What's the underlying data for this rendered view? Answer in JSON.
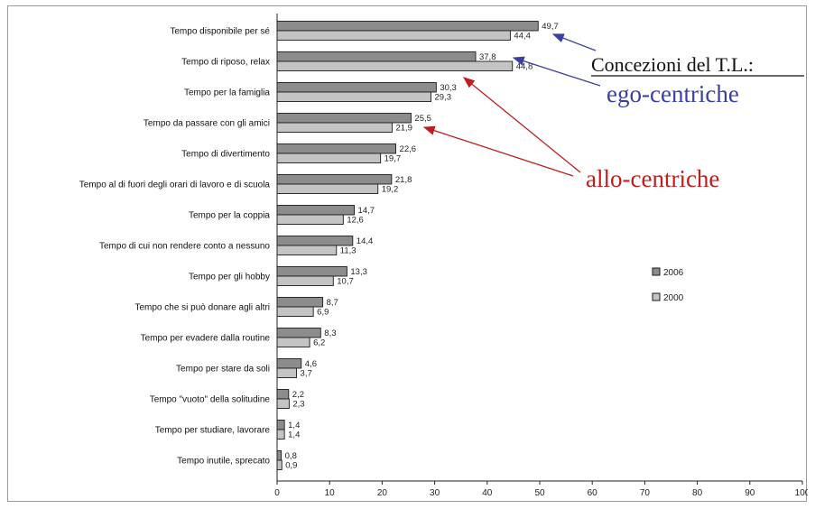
{
  "colors": {
    "series_2006": "#8c8c8c",
    "series_2000": "#c4c4c4",
    "bar_stroke": "#1a1a1a",
    "ego_color": "#3b3fa0",
    "allo_color": "#bf1e1e",
    "axis_color": "#222222"
  },
  "chart_data": {
    "type": "bar",
    "orientation": "horizontal",
    "categories": [
      "Tempo disponibile per sé",
      "Tempo di riposo, relax",
      "Tempo per la famiglia",
      "Tempo da passare con gli amici",
      "Tempo di divertimento",
      "Tempo al di fuori degli orari di lavoro e di scuola",
      "Tempo per la coppia",
      "Tempo di cui non rendere conto a nessuno",
      "Tempo per gli hobby",
      "Tempo che si può donare agli altri",
      "Tempo per evadere dalla routine",
      "Tempo per stare da soli",
      "Tempo \"vuoto\" della solitudine",
      "Tempo per studiare, lavorare",
      "Tempo inutile, sprecato"
    ],
    "series": [
      {
        "name": "2006",
        "values": [
          49.7,
          37.8,
          30.3,
          25.5,
          22.6,
          21.8,
          14.7,
          14.4,
          13.3,
          8.7,
          8.3,
          4.6,
          2.2,
          1.4,
          0.8
        ],
        "labels": [
          "49,7",
          "37,8",
          "30,3",
          "25,5",
          "22,6",
          "21,8",
          "14,7",
          "14,4",
          "13,3",
          "8,7",
          "8,3",
          "4,6",
          "2,2",
          "1,4",
          "0,8"
        ]
      },
      {
        "name": "2000",
        "values": [
          44.4,
          44.8,
          29.3,
          21.9,
          19.7,
          19.2,
          12.6,
          11.3,
          10.7,
          6.9,
          6.2,
          3.7,
          2.3,
          1.4,
          0.9
        ],
        "labels": [
          "44,4",
          "44,8",
          "29,3",
          "21,9",
          "19,7",
          "19,2",
          "12,6",
          "11,3",
          "10,7",
          "6,9",
          "6,2",
          "3,7",
          "2,3",
          "1,4",
          "0,9"
        ]
      }
    ],
    "xlim": [
      0,
      100
    ],
    "xticks": [
      0,
      10,
      20,
      30,
      40,
      50,
      60,
      70,
      80,
      90,
      100
    ],
    "xtick_labels": [
      "0",
      "10",
      "20",
      "30",
      "40",
      "50",
      "60",
      "70",
      "80",
      "90",
      "100"
    ],
    "grid": false,
    "legend_position": "right",
    "annotations": {
      "title": "Concezioni del T.L.:",
      "ego": "ego-centriche",
      "allo": "allo-centriche"
    }
  }
}
